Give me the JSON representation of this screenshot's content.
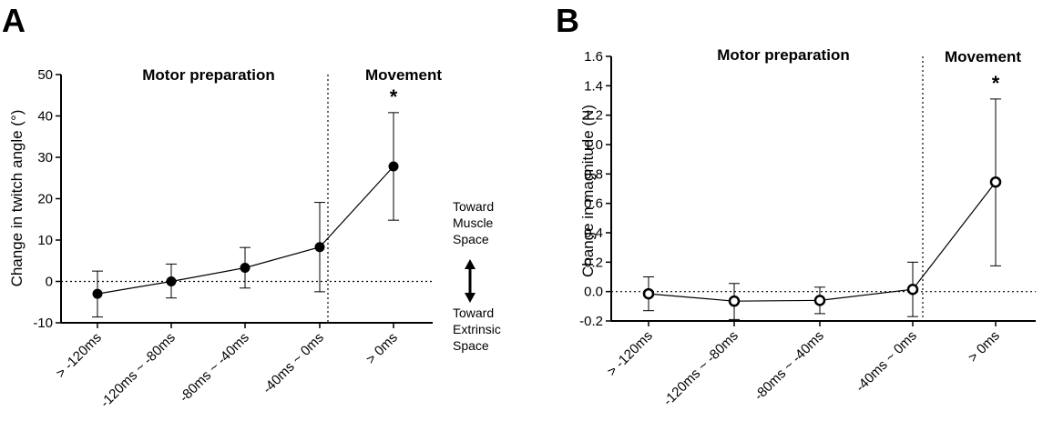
{
  "panels": {
    "a_label": "A",
    "b_label": "B",
    "a_regions": [
      "Motor preparation",
      "Movement"
    ],
    "b_regions": [
      "Motor preparation",
      "Movement"
    ],
    "a_star": "*",
    "b_star": "*"
  },
  "side_annotation": {
    "up": [
      "Toward",
      "Muscle",
      "Space"
    ],
    "down": [
      "Toward",
      "Extrinsic",
      "Space"
    ]
  },
  "chart_data": [
    {
      "type": "line",
      "panel": "A",
      "ylabel": "Change in twitch angle (°)",
      "xlabel": "",
      "categories": [
        "> -120ms",
        "-120ms ~ -80ms",
        "-80ms ~ -40ms",
        "-40ms ~ 0ms",
        "> 0ms"
      ],
      "series": [
        {
          "values": [
            -3.0,
            0.0,
            3.3,
            8.3,
            27.8
          ],
          "err_low": [
            -8.6,
            -4.0,
            -1.6,
            -2.5,
            14.8
          ],
          "err_high": [
            2.5,
            4.2,
            8.2,
            19.1,
            40.8
          ],
          "marker": "filled-circle"
        }
      ],
      "ylim": [
        -10,
        50
      ],
      "yticks": [
        -10,
        0,
        10,
        20,
        30,
        40,
        50
      ],
      "ytick_labels": [
        "-10",
        "0",
        "10",
        "20",
        "30",
        "40",
        "50"
      ],
      "reference_line_y": 0,
      "divider_between": [
        "-40ms ~ 0ms",
        "> 0ms"
      ],
      "significant": [
        "> 0ms"
      ],
      "grid": false
    },
    {
      "type": "line",
      "panel": "B",
      "ylabel": "Change in magnitude (N)",
      "xlabel": "",
      "categories": [
        "> -120ms",
        "-120ms ~ -80ms",
        "-80ms ~ -40ms",
        "-40ms ~ 0ms",
        "> 0ms"
      ],
      "series": [
        {
          "values": [
            -0.015,
            -0.065,
            -0.06,
            0.015,
            0.745
          ],
          "err_low": [
            -0.13,
            -0.19,
            -0.15,
            -0.17,
            0.175
          ],
          "err_high": [
            0.1,
            0.055,
            0.03,
            0.2,
            1.31
          ],
          "marker": "open-circle"
        }
      ],
      "ylim": [
        -0.2,
        1.6
      ],
      "yticks": [
        -0.2,
        0.0,
        0.2,
        0.4,
        0.6,
        0.8,
        1.0,
        1.2,
        1.4,
        1.6
      ],
      "ytick_labels": [
        "-0.2",
        "0.0",
        "0.2",
        "0.4",
        "0.6",
        "0.8",
        "1.0",
        "1.2",
        "1.4",
        "1.6"
      ],
      "reference_line_y": 0,
      "divider_between": [
        "-40ms ~ 0ms",
        "> 0ms"
      ],
      "significant": [
        "> 0ms"
      ],
      "grid": false
    }
  ]
}
